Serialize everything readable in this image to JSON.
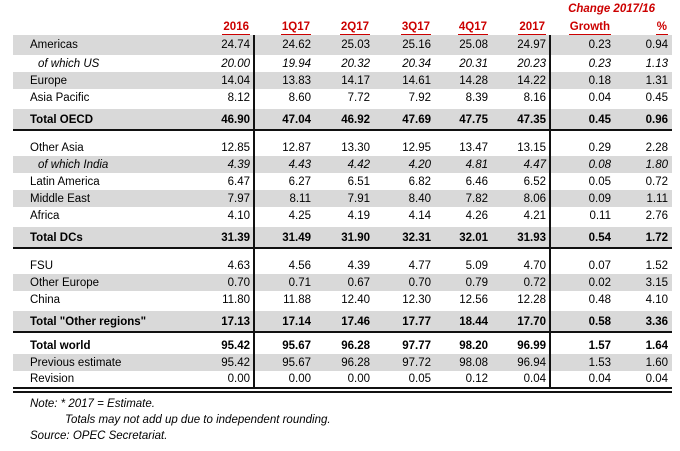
{
  "header": {
    "change_group_label": "Change 2017/16",
    "columns": [
      "2016",
      "1Q17",
      "2Q17",
      "3Q17",
      "4Q17",
      "2017",
      "Growth",
      "%"
    ]
  },
  "table": {
    "rows": [
      {
        "label": "Americas",
        "variant": "normal",
        "shaded": true,
        "values": [
          "24.74",
          "24.62",
          "25.03",
          "25.16",
          "25.08",
          "24.97",
          "0.23",
          "0.94"
        ]
      },
      {
        "label": "of which US",
        "variant": "sub",
        "shaded": false,
        "values": [
          "20.00",
          "19.94",
          "20.32",
          "20.34",
          "20.31",
          "20.23",
          "0.23",
          "1.13"
        ]
      },
      {
        "label": "Europe",
        "variant": "normal",
        "shaded": true,
        "values": [
          "14.04",
          "13.83",
          "14.17",
          "14.61",
          "14.28",
          "14.22",
          "0.18",
          "1.31"
        ]
      },
      {
        "label": "Asia Pacific",
        "variant": "normal",
        "shaded": false,
        "values": [
          "8.12",
          "8.60",
          "7.72",
          "7.92",
          "8.39",
          "8.16",
          "0.04",
          "0.45"
        ]
      },
      {
        "label": "Total OECD",
        "variant": "section-total",
        "shaded": true,
        "values": [
          "46.90",
          "47.04",
          "46.92",
          "47.69",
          "47.75",
          "47.35",
          "0.45",
          "0.96"
        ]
      },
      {
        "label": "Other Asia",
        "variant": "normal",
        "shaded": false,
        "values": [
          "12.85",
          "12.87",
          "13.30",
          "12.95",
          "13.47",
          "13.15",
          "0.29",
          "2.28"
        ]
      },
      {
        "label": "of which India",
        "variant": "sub",
        "shaded": true,
        "values": [
          "4.39",
          "4.43",
          "4.42",
          "4.20",
          "4.81",
          "4.47",
          "0.08",
          "1.80"
        ]
      },
      {
        "label": "Latin America",
        "variant": "normal",
        "shaded": false,
        "values": [
          "6.47",
          "6.27",
          "6.51",
          "6.82",
          "6.46",
          "6.52",
          "0.05",
          "0.72"
        ]
      },
      {
        "label": "Middle East",
        "variant": "normal",
        "shaded": true,
        "values": [
          "7.97",
          "8.11",
          "7.91",
          "8.40",
          "7.82",
          "8.06",
          "0.09",
          "1.11"
        ]
      },
      {
        "label": "Africa",
        "variant": "normal",
        "shaded": false,
        "values": [
          "4.10",
          "4.25",
          "4.19",
          "4.14",
          "4.26",
          "4.21",
          "0.11",
          "2.76"
        ]
      },
      {
        "label": "Total DCs",
        "variant": "section-total",
        "shaded": true,
        "values": [
          "31.39",
          "31.49",
          "31.90",
          "32.31",
          "32.01",
          "31.93",
          "0.54",
          "1.72"
        ]
      },
      {
        "label": "FSU",
        "variant": "normal",
        "shaded": false,
        "values": [
          "4.63",
          "4.56",
          "4.39",
          "4.77",
          "5.09",
          "4.70",
          "0.07",
          "1.52"
        ]
      },
      {
        "label": "Other Europe",
        "variant": "normal",
        "shaded": true,
        "values": [
          "0.70",
          "0.71",
          "0.67",
          "0.70",
          "0.79",
          "0.72",
          "0.02",
          "3.15"
        ]
      },
      {
        "label": "China",
        "variant": "normal",
        "shaded": false,
        "values": [
          "11.80",
          "11.88",
          "12.40",
          "12.30",
          "12.56",
          "12.28",
          "0.48",
          "4.10"
        ]
      },
      {
        "label": "Total \"Other regions\"",
        "variant": "section-total-tight",
        "shaded": true,
        "values": [
          "17.13",
          "17.14",
          "17.46",
          "17.77",
          "18.44",
          "17.70",
          "0.58",
          "3.36"
        ]
      },
      {
        "label": "Total world",
        "variant": "grand-total",
        "shaded": false,
        "values": [
          "95.42",
          "95.67",
          "96.28",
          "97.77",
          "98.20",
          "96.99",
          "1.57",
          "1.64"
        ]
      },
      {
        "label": "Previous estimate",
        "variant": "normal",
        "shaded": true,
        "values": [
          "95.42",
          "95.67",
          "96.28",
          "97.72",
          "98.08",
          "96.94",
          "1.53",
          "1.60"
        ]
      },
      {
        "label": "Revision",
        "variant": "normal",
        "shaded": false,
        "values": [
          "0.00",
          "0.00",
          "0.00",
          "0.05",
          "0.12",
          "0.04",
          "0.04",
          "0.04"
        ]
      }
    ]
  },
  "notes": [
    "Note: * 2017 = Estimate.",
    "Totals may not add up due to independent rounding.",
    "Source: OPEC Secretariat."
  ],
  "colors": {
    "accent_red": "#CC0000",
    "row_shading": "#D9D9D9",
    "rule_line": "#111111"
  }
}
